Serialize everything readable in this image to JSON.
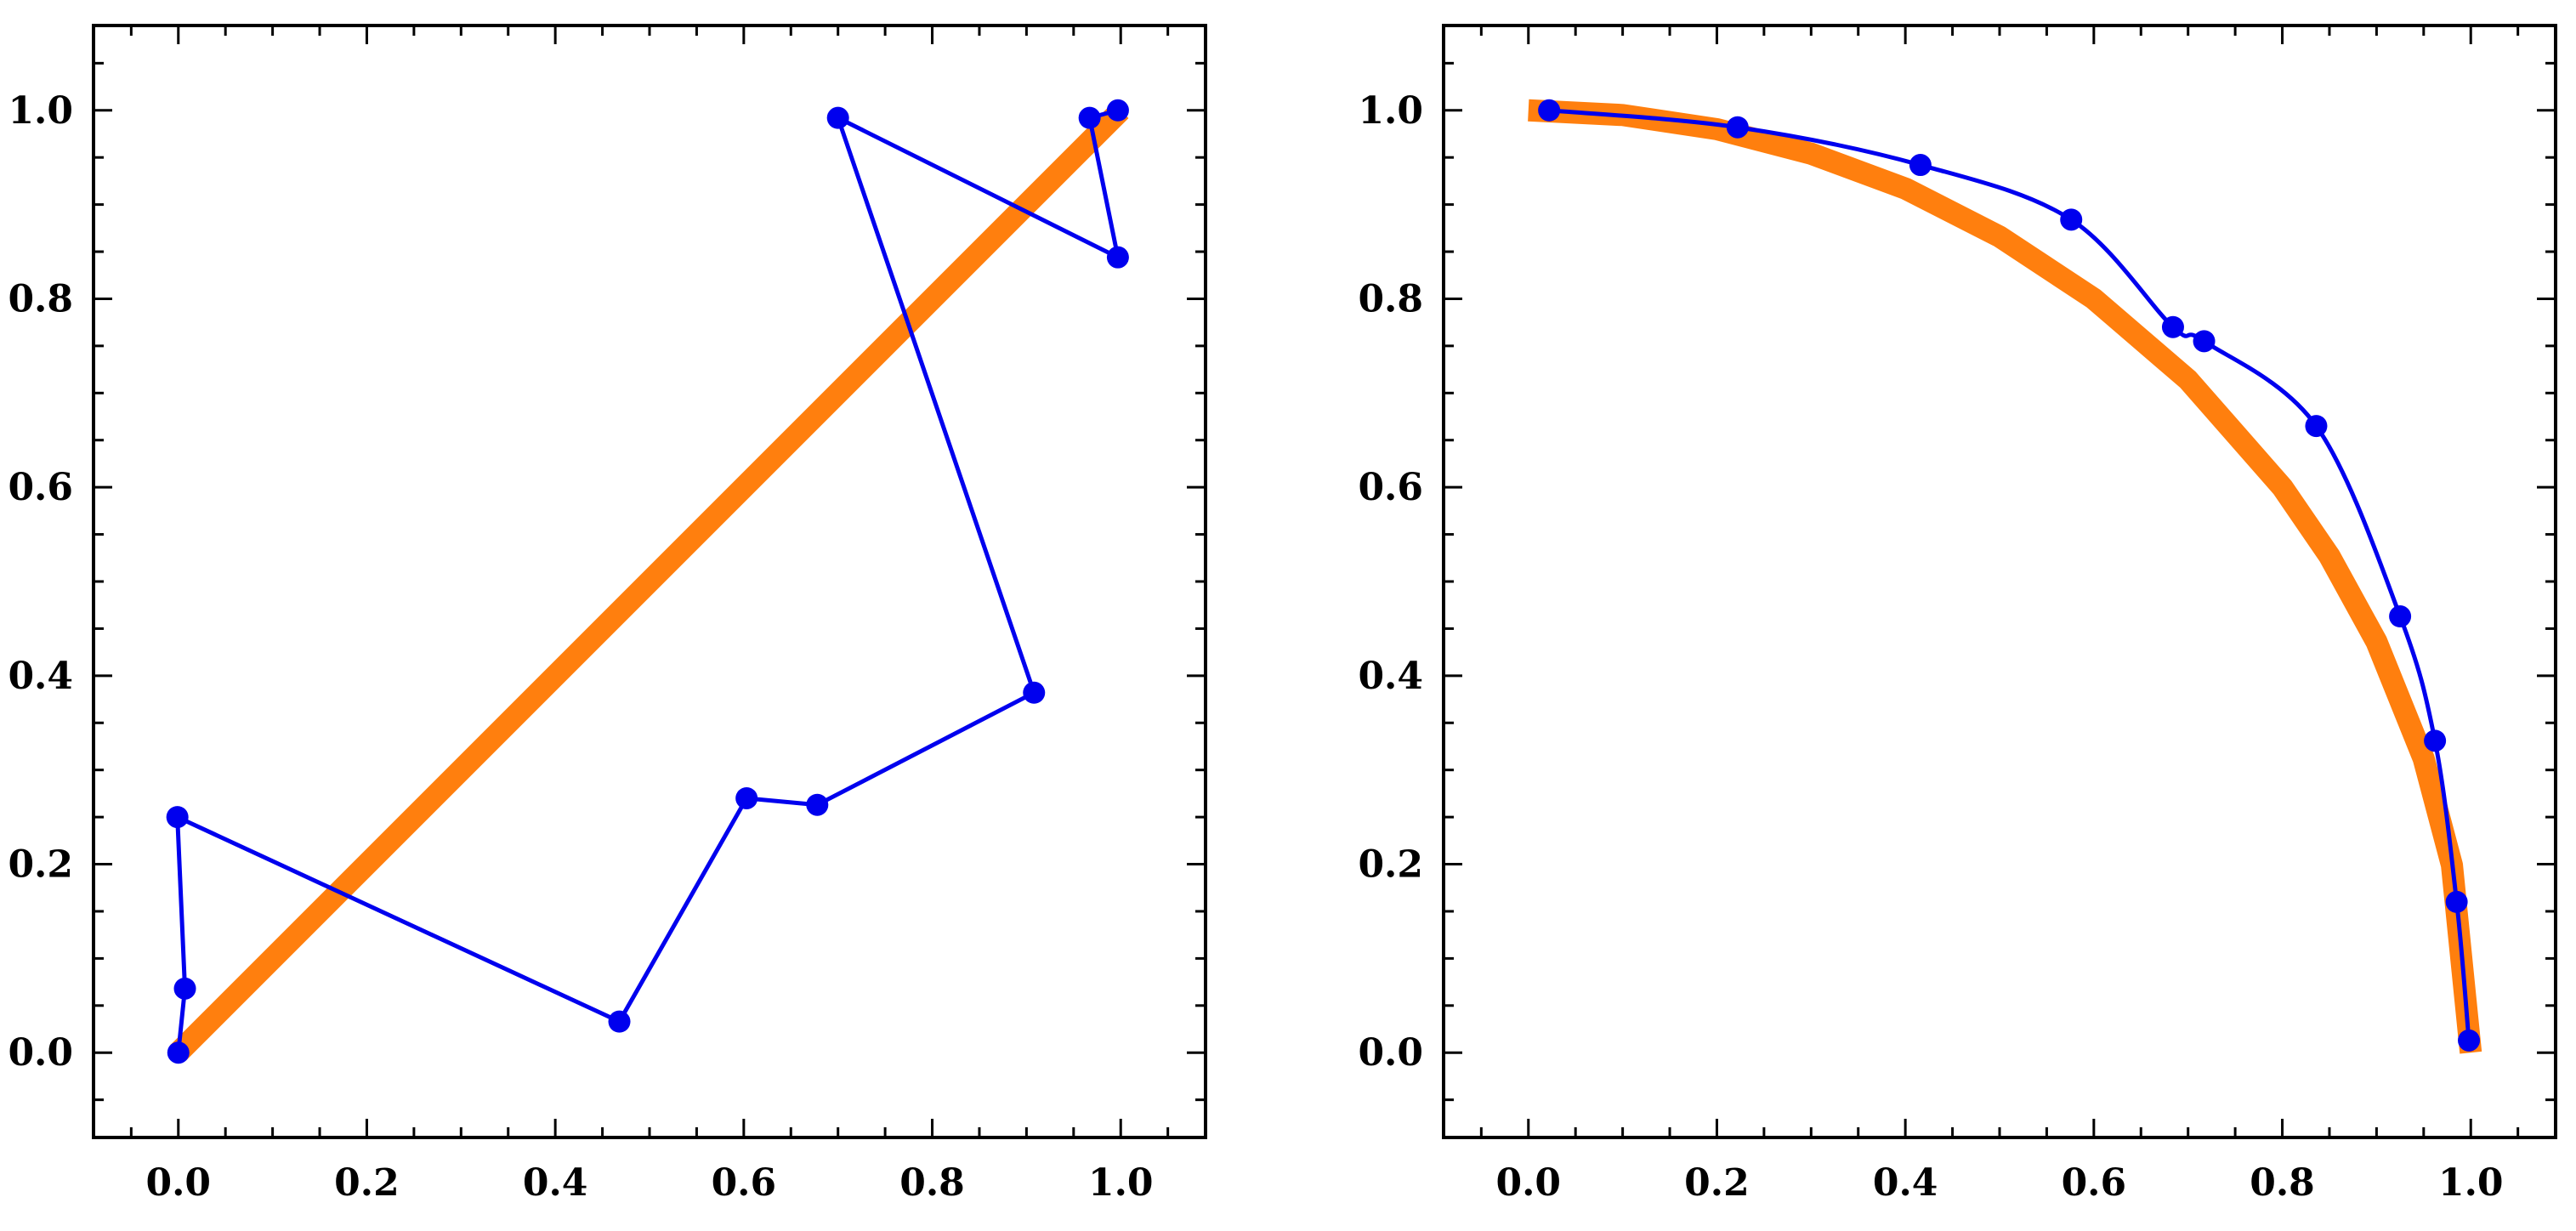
{
  "chart_data": [
    {
      "type": "line",
      "title": "",
      "xlabel": "",
      "ylabel": "",
      "xlim": [
        -0.09,
        1.09
      ],
      "ylim": [
        -0.09,
        1.09
      ],
      "grid": false,
      "xticks": [
        "0.0",
        "0.2",
        "0.4",
        "0.6",
        "0.8",
        "1.0"
      ],
      "yticks": [
        "0.0",
        "0.2",
        "0.4",
        "0.6",
        "0.8",
        "1.0"
      ],
      "series": [
        {
          "style": "reference-line",
          "color": "#ff7f0e",
          "x": [
            0.0,
            1.0
          ],
          "y": [
            0.0,
            1.0
          ]
        },
        {
          "style": "polyline-with-markers",
          "color": "#0000ee",
          "x": [
            0.0,
            0.007,
            -0.001,
            0.468,
            0.603,
            0.678,
            0.908,
            0.7,
            0.997,
            0.967,
            0.997
          ],
          "y": [
            0.0,
            0.068,
            0.25,
            0.033,
            0.27,
            0.263,
            0.382,
            0.992,
            0.844,
            0.992,
            1.0
          ]
        }
      ]
    },
    {
      "type": "line",
      "title": "",
      "xlabel": "",
      "ylabel": "",
      "xlim": [
        -0.09,
        1.09
      ],
      "ylim": [
        -0.09,
        1.09
      ],
      "grid": false,
      "xticks": [
        "0.0",
        "0.2",
        "0.4",
        "0.6",
        "0.8",
        "1.0"
      ],
      "yticks": [
        "0.0",
        "0.2",
        "0.4",
        "0.6",
        "0.8",
        "1.0"
      ],
      "series": [
        {
          "style": "reference-arc",
          "color": "#ff7f0e",
          "x": [
            0.0,
            0.1,
            0.2,
            0.3,
            0.4,
            0.5,
            0.6,
            0.7,
            0.8,
            0.85,
            0.9,
            0.95,
            0.98,
            1.0
          ],
          "y": [
            1.0,
            0.995,
            0.98,
            0.954,
            0.917,
            0.866,
            0.8,
            0.714,
            0.6,
            0.527,
            0.436,
            0.312,
            0.199,
            0.0
          ]
        },
        {
          "style": "smooth-curve-with-markers",
          "color": "#0000ee",
          "x": [
            0.022,
            0.222,
            0.416,
            0.576,
            0.684,
            0.717,
            0.836,
            0.925,
            0.962,
            0.985,
            0.998
          ],
          "y": [
            1.0,
            0.982,
            0.942,
            0.884,
            0.77,
            0.755,
            0.665,
            0.463,
            0.331,
            0.16,
            0.013
          ]
        }
      ]
    }
  ]
}
